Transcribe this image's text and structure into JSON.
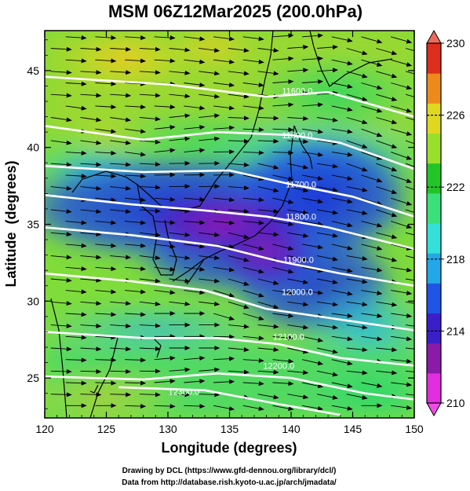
{
  "title": "MSM 06Z12Mar2025 (200.0hPa)",
  "x_axis": {
    "label": "Longitude (degrees)",
    "ticks": [
      "120",
      "125",
      "130",
      "135",
      "140",
      "145",
      "150"
    ],
    "range": [
      120,
      150
    ]
  },
  "y_axis": {
    "label": "Latitude  (degrees)",
    "ticks": [
      "25",
      "30",
      "35",
      "40",
      "45"
    ],
    "range": [
      22.4,
      47.6
    ]
  },
  "colorbar": {
    "ticks": [
      "230",
      "226",
      "222",
      "218",
      "214",
      "210"
    ],
    "min": 210,
    "max": 230,
    "colors": [
      "#e22de0",
      "#8a1aa8",
      "#3a1fc8",
      "#1f55e6",
      "#22a8e8",
      "#35e0d8",
      "#3ae07a",
      "#22c428",
      "#9ae02a",
      "#e0d81f",
      "#ee8a1a",
      "#dd2d1c"
    ]
  },
  "contours": [
    {
      "label": "11600.0",
      "points": [
        [
          120,
          44.6
        ],
        [
          130,
          44.1
        ],
        [
          138,
          43.3
        ],
        [
          143,
          43.6
        ],
        [
          150,
          42.0
        ]
      ],
      "label_at": [
        140.5,
        43.7
      ]
    },
    {
      "label": "11600.0",
      "points": [
        [
          120,
          41.4
        ],
        [
          128,
          40.5
        ],
        [
          134,
          41.0
        ],
        [
          140,
          40.8
        ],
        [
          144,
          40.3
        ],
        [
          150,
          38.6
        ]
      ],
      "label_at": [
        140.5,
        40.8
      ]
    },
    {
      "label": "11700.0",
      "points": [
        [
          120,
          38.8
        ],
        [
          128,
          38.4
        ],
        [
          135,
          38.5
        ],
        [
          140,
          37.6
        ],
        [
          145,
          36.8
        ],
        [
          150,
          35.5
        ]
      ],
      "label_at": [
        140.8,
        37.6
      ]
    },
    {
      "label": "11800.0",
      "points": [
        [
          120,
          36.9
        ],
        [
          127,
          36.3
        ],
        [
          133,
          35.9
        ],
        [
          138,
          35.5
        ],
        [
          143,
          34.8
        ],
        [
          150,
          33.4
        ]
      ],
      "label_at": [
        140.8,
        35.5
      ]
    },
    {
      "label": "11900.0",
      "points": [
        [
          120,
          34.8
        ],
        [
          127,
          34.3
        ],
        [
          134,
          33.6
        ],
        [
          139,
          32.6
        ],
        [
          144,
          31.8
        ],
        [
          150,
          31.0
        ]
      ],
      "label_at": [
        140.6,
        32.7
      ]
    },
    {
      "label": "12000.0",
      "points": [
        [
          120,
          31.8
        ],
        [
          127,
          31.3
        ],
        [
          133,
          30.7
        ],
        [
          138,
          29.5
        ],
        [
          144,
          28.8
        ],
        [
          150,
          28.1
        ]
      ],
      "label_at": [
        140.5,
        30.6
      ]
    },
    {
      "label": "12100.0",
      "points": [
        [
          120,
          28.0
        ],
        [
          128,
          27.6
        ],
        [
          134,
          27.6
        ],
        [
          139,
          27.2
        ],
        [
          144,
          26.3
        ],
        [
          150,
          25.8
        ]
      ],
      "label_at": [
        139.8,
        27.7
      ]
    },
    {
      "label": "12200.0",
      "points": [
        [
          120,
          25.1
        ],
        [
          128,
          24.9
        ],
        [
          134,
          25.3
        ],
        [
          140,
          25.0
        ],
        [
          146,
          24.0
        ],
        [
          150,
          23.6
        ]
      ],
      "label_at": [
        139.0,
        25.8
      ]
    },
    {
      "label": "12300.0",
      "points": [
        [
          126,
          24.4
        ],
        [
          133,
          24.2
        ],
        [
          139,
          23.3
        ],
        [
          144,
          22.6
        ]
      ],
      "label_at": [
        131.3,
        24.1
      ]
    }
  ],
  "credits": [
    "Drawing by DCL (https://www.gfd-dennou.org/library/dcl/)",
    "Data from http://database.rish.kyoto-u.ac.jp/arch/jmadata/"
  ]
}
